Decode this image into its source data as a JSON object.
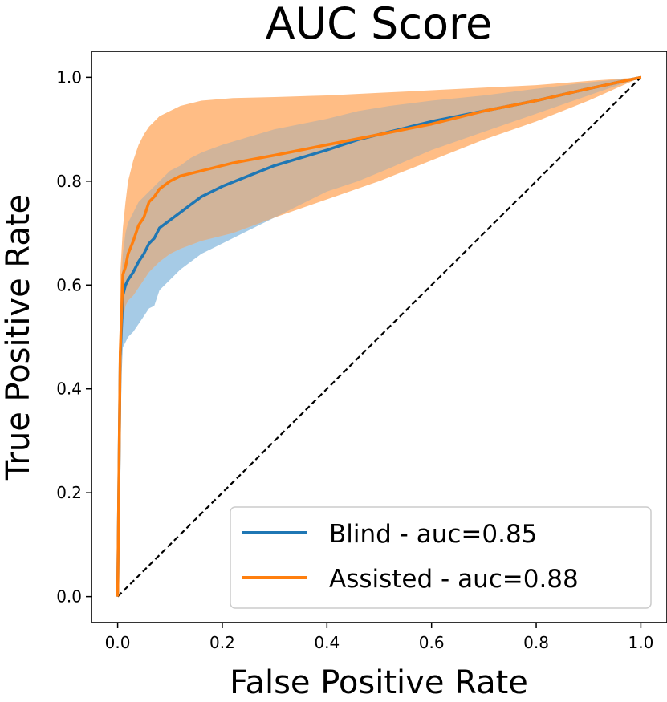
{
  "chart_data": {
    "type": "line",
    "title": "AUC Score",
    "xlabel": "False Positive Rate",
    "ylabel": "True Positive Rate",
    "xlim": [
      -0.05,
      1.05
    ],
    "ylim": [
      -0.05,
      1.05
    ],
    "xticks": [
      "0.0",
      "0.2",
      "0.4",
      "0.6",
      "0.8",
      "1.0"
    ],
    "yticks": [
      "0.0",
      "0.2",
      "0.4",
      "0.6",
      "0.8",
      "1.0"
    ],
    "legend_position": "lower-right",
    "colors": {
      "blind": "#1f77b4",
      "assisted": "#ff7f0e",
      "blind_band": "#a6cbe6",
      "assisted_band": "#ffbd85",
      "overlap_band": "#d1b49a",
      "diagonal": "#000000"
    },
    "series": [
      {
        "name": "Blind - auc=0.85",
        "x": [
          0,
          0.005,
          0.01,
          0.015,
          0.02,
          0.03,
          0.04,
          0.05,
          0.06,
          0.07,
          0.08,
          0.1,
          0.12,
          0.14,
          0.16,
          0.2,
          0.25,
          0.3,
          0.35,
          0.4,
          0.46,
          0.52,
          0.6,
          0.7,
          0.8,
          0.9,
          1.0
        ],
        "y": [
          0,
          0.46,
          0.58,
          0.6,
          0.61,
          0.625,
          0.645,
          0.66,
          0.68,
          0.69,
          0.71,
          0.725,
          0.74,
          0.755,
          0.77,
          0.79,
          0.81,
          0.83,
          0.845,
          0.86,
          0.88,
          0.895,
          0.915,
          0.935,
          0.955,
          0.978,
          1.0
        ],
        "band_upper": [
          0,
          0.55,
          0.66,
          0.7,
          0.72,
          0.74,
          0.76,
          0.77,
          0.78,
          0.79,
          0.8,
          0.82,
          0.83,
          0.845,
          0.855,
          0.87,
          0.885,
          0.9,
          0.91,
          0.92,
          0.935,
          0.945,
          0.955,
          0.965,
          0.978,
          0.99,
          1.0
        ],
        "band_lower": [
          0,
          0.37,
          0.48,
          0.49,
          0.5,
          0.51,
          0.525,
          0.54,
          0.555,
          0.56,
          0.59,
          0.61,
          0.63,
          0.645,
          0.66,
          0.68,
          0.705,
          0.73,
          0.755,
          0.78,
          0.8,
          0.825,
          0.86,
          0.895,
          0.93,
          0.965,
          1.0
        ]
      },
      {
        "name": "Assisted - auc=0.88",
        "x": [
          0,
          0.005,
          0.01,
          0.015,
          0.02,
          0.03,
          0.04,
          0.05,
          0.06,
          0.07,
          0.08,
          0.1,
          0.12,
          0.16,
          0.22,
          0.3,
          0.4,
          0.5,
          0.6,
          0.7,
          0.8,
          0.9,
          1.0
        ],
        "y": [
          0,
          0.47,
          0.62,
          0.635,
          0.66,
          0.685,
          0.715,
          0.73,
          0.76,
          0.77,
          0.785,
          0.8,
          0.81,
          0.82,
          0.835,
          0.85,
          0.87,
          0.89,
          0.91,
          0.935,
          0.955,
          0.978,
          1.0
        ],
        "band_upper": [
          0,
          0.62,
          0.71,
          0.76,
          0.8,
          0.84,
          0.87,
          0.89,
          0.905,
          0.915,
          0.925,
          0.935,
          0.945,
          0.955,
          0.96,
          0.962,
          0.965,
          0.97,
          0.975,
          0.98,
          0.985,
          0.993,
          1.0
        ],
        "band_lower": [
          0,
          0.5,
          0.53,
          0.56,
          0.57,
          0.58,
          0.595,
          0.61,
          0.625,
          0.635,
          0.645,
          0.66,
          0.67,
          0.685,
          0.7,
          0.73,
          0.765,
          0.8,
          0.84,
          0.88,
          0.915,
          0.955,
          1.0
        ]
      }
    ],
    "reference_line": {
      "name": "chance-diagonal",
      "x": [
        0,
        1
      ],
      "y": [
        0,
        1
      ],
      "style": "dashed"
    }
  }
}
